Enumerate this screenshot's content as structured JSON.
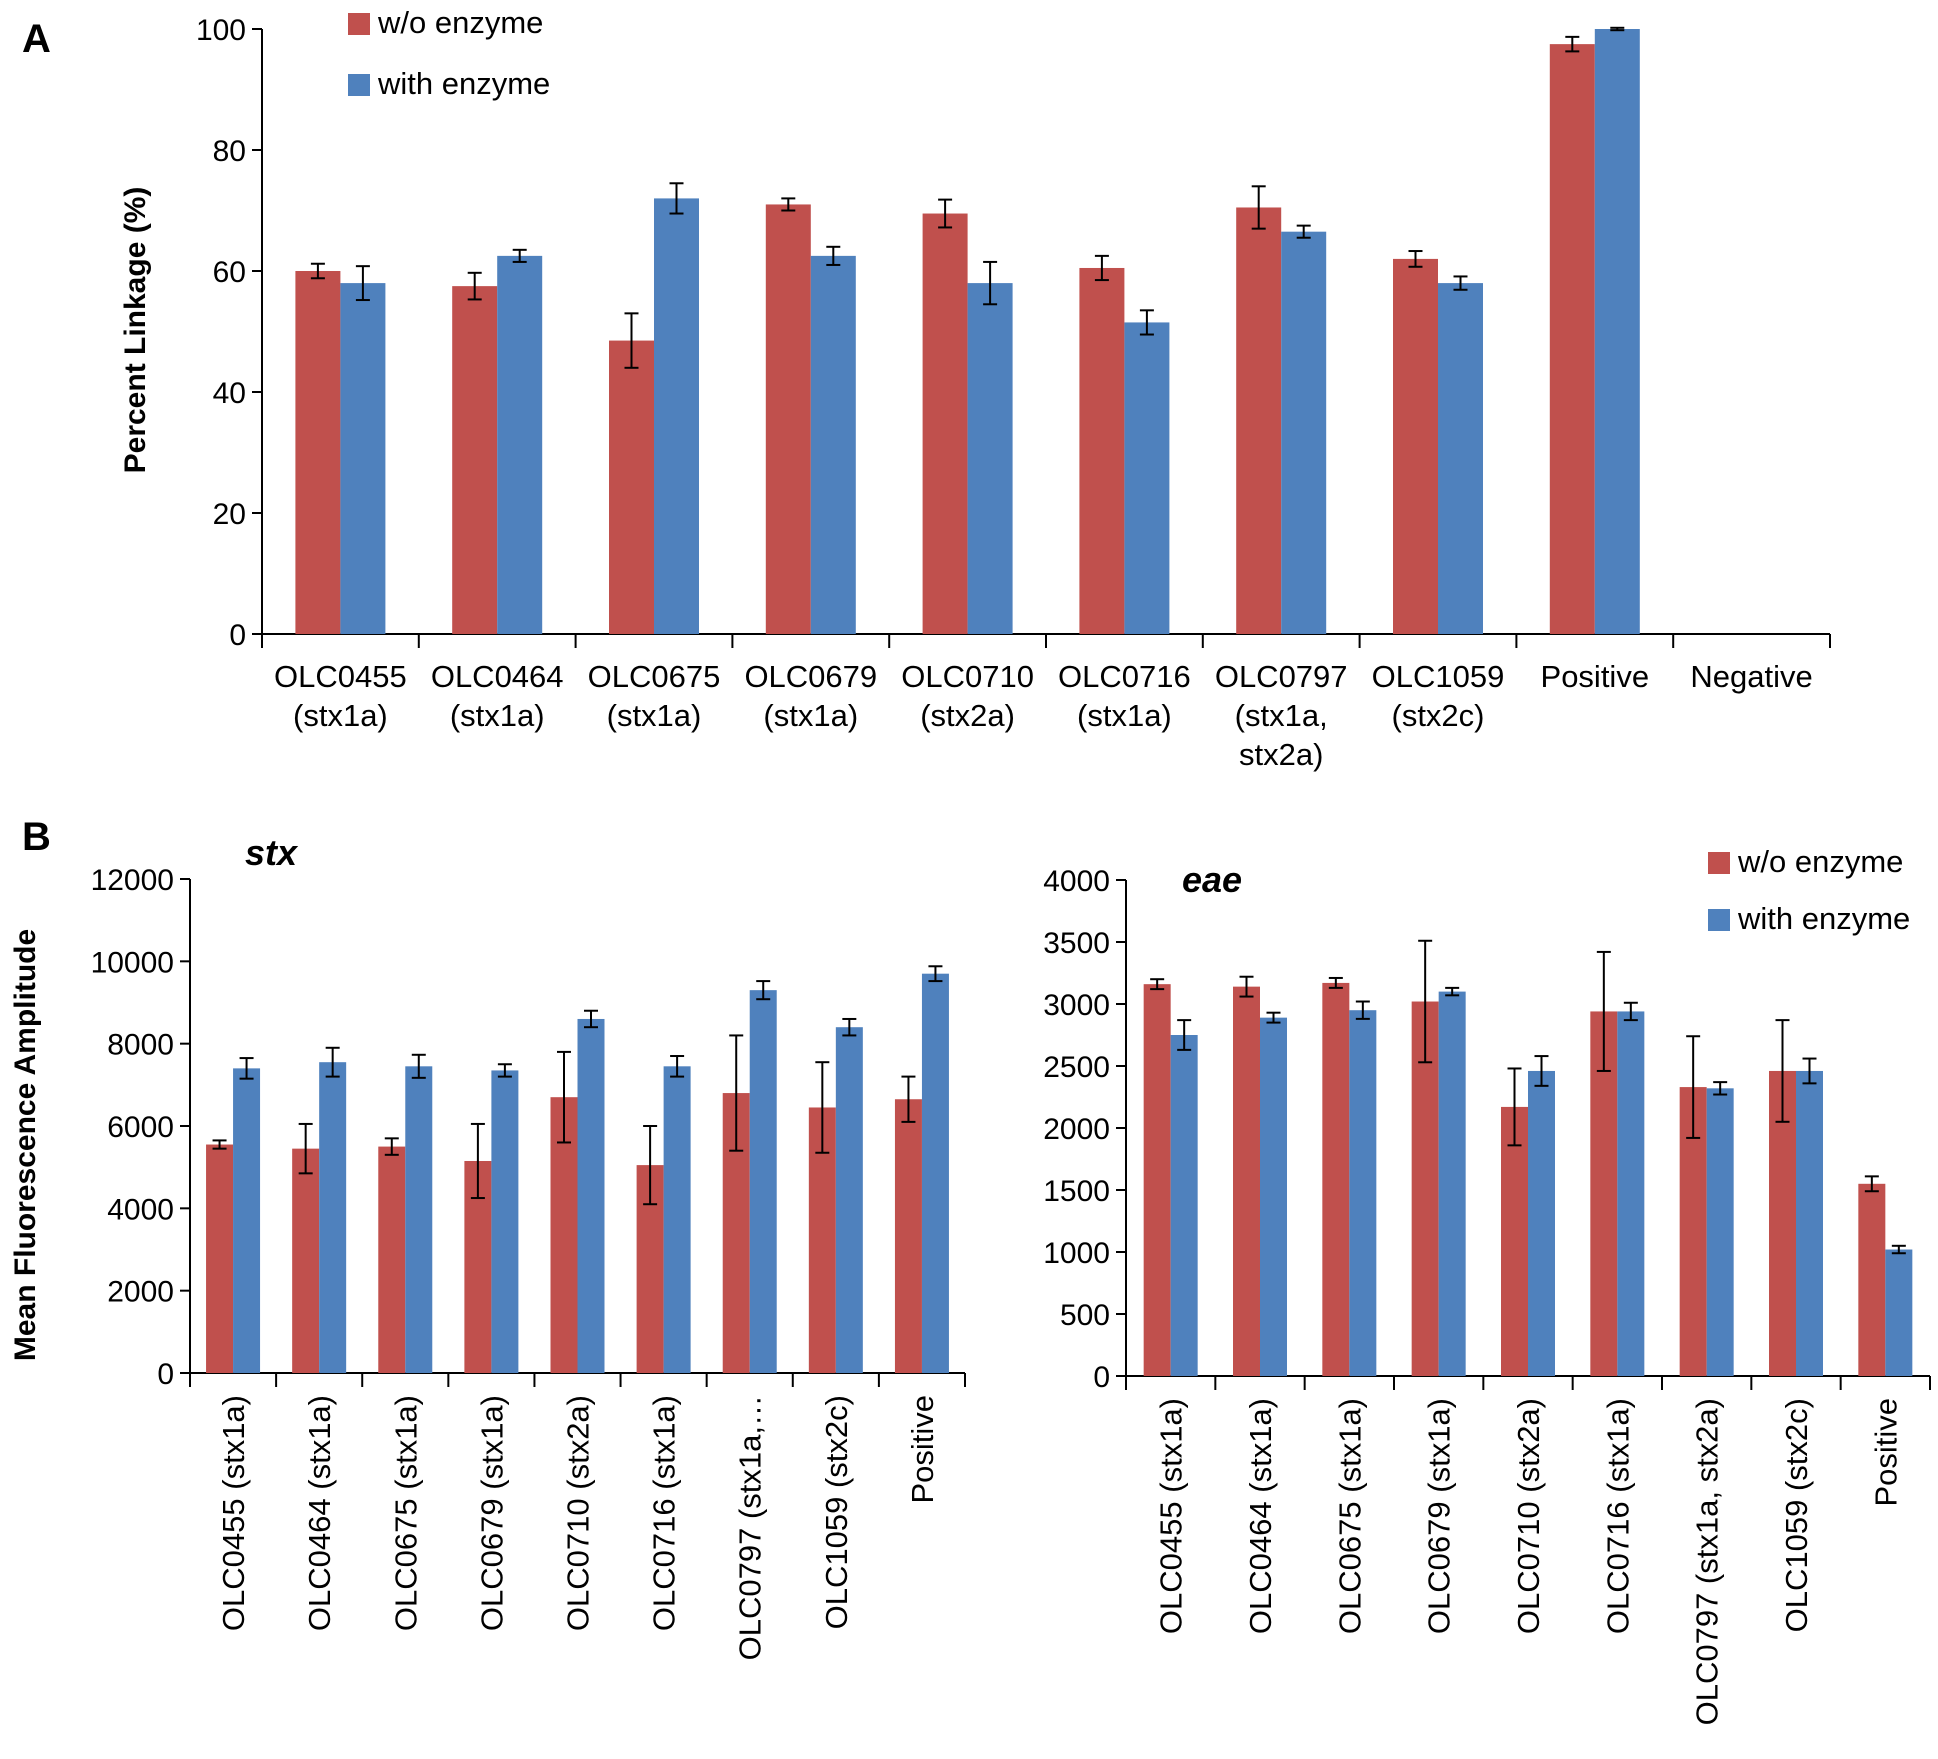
{
  "panels": {
    "a": "A",
    "b": "B"
  },
  "colors": {
    "without": "#C0504D",
    "with": "#4F81BD"
  },
  "chart_data": [
    {
      "id": "A",
      "type": "bar",
      "title": "",
      "xlabel": "",
      "ylabel": "Percent Linkage (%)",
      "ylim": [
        0,
        100
      ],
      "yticks": [
        0,
        20,
        40,
        60,
        80,
        100
      ],
      "categories": [
        [
          "OLC0455",
          "(stx1a)"
        ],
        [
          "OLC0464",
          "(stx1a)"
        ],
        [
          "OLC0675",
          "(stx1a)"
        ],
        [
          "OLC0679",
          "(stx1a)"
        ],
        [
          "OLC0710",
          "(stx2a)"
        ],
        [
          "OLC0716",
          "(stx1a)"
        ],
        [
          "OLC0797",
          "(stx1a,",
          "stx2a)"
        ],
        [
          "OLC1059",
          "(stx2c)"
        ],
        [
          "Positive"
        ],
        [
          "Negative"
        ]
      ],
      "legend": {
        "position": "top-left",
        "entries": [
          "w/o enzyme",
          "with enzyme"
        ]
      },
      "series": [
        {
          "name": "w/o enzyme",
          "values": [
            60,
            57.5,
            48.5,
            71,
            69.5,
            60.5,
            70.5,
            62,
            97.5,
            0
          ],
          "errors": [
            1.2,
            2.2,
            4.5,
            1,
            2.3,
            2,
            3.5,
            1.3,
            1.2,
            0
          ]
        },
        {
          "name": "with enzyme",
          "values": [
            58,
            62.5,
            72,
            62.5,
            58,
            51.5,
            66.5,
            58,
            100,
            0
          ],
          "errors": [
            2.8,
            1,
            2.5,
            1.5,
            3.5,
            2,
            1,
            1.1,
            0.2,
            0
          ]
        }
      ]
    },
    {
      "id": "B-stx",
      "type": "bar",
      "title": "stx",
      "xlabel": "",
      "ylabel": "Mean Fluorescence Amplitude",
      "ylim": [
        0,
        12000
      ],
      "yticks": [
        0,
        2000,
        4000,
        6000,
        8000,
        10000,
        12000
      ],
      "categories": [
        "OLC0455 (stx1a)",
        "OLC0464 (stx1a)",
        "OLC0675 (stx1a)",
        "OLC0679 (stx1a)",
        "OLC0710 (stx2a)",
        "OLC0716 (stx1a)",
        "OLC0797 (stx1a,…",
        "OLC1059 (stx2c)",
        "Positive"
      ],
      "series": [
        {
          "name": "w/o enzyme",
          "values": [
            5550,
            5450,
            5500,
            5150,
            6700,
            5050,
            6800,
            6450,
            6650
          ],
          "errors": [
            100,
            600,
            200,
            900,
            1100,
            950,
            1400,
            1100,
            550
          ]
        },
        {
          "name": "with enzyme",
          "values": [
            7400,
            7550,
            7450,
            7350,
            8600,
            7450,
            9300,
            8400,
            9700
          ],
          "errors": [
            250,
            350,
            280,
            150,
            200,
            250,
            220,
            200,
            180
          ]
        }
      ]
    },
    {
      "id": "B-eae",
      "type": "bar",
      "title": "eae",
      "xlabel": "",
      "ylabel": "",
      "ylim": [
        0,
        4000
      ],
      "yticks": [
        0,
        500,
        1000,
        1500,
        2000,
        2500,
        3000,
        3500,
        4000
      ],
      "categories": [
        "OLC0455 (stx1a)",
        "OLC0464 (stx1a)",
        "OLC0675 (stx1a)",
        "OLC0679 (stx1a)",
        "OLC0710 (stx2a)",
        "OLC0716 (stx1a)",
        "OLC0797 (stx1a, stx2a)",
        "OLC1059 (stx2c)",
        "Positive"
      ],
      "legend": {
        "position": "top-right",
        "entries": [
          "w/o enzyme",
          "with enzyme"
        ]
      },
      "series": [
        {
          "name": "w/o enzyme",
          "values": [
            3160,
            3140,
            3170,
            3020,
            2170,
            2940,
            2330,
            2460,
            1550
          ],
          "errors": [
            40,
            80,
            40,
            490,
            310,
            480,
            410,
            410,
            60
          ]
        },
        {
          "name": "with enzyme",
          "values": [
            2750,
            2890,
            2950,
            3100,
            2460,
            2940,
            2320,
            2460,
            1020
          ],
          "errors": [
            120,
            40,
            70,
            30,
            120,
            70,
            50,
            100,
            30
          ]
        }
      ]
    }
  ]
}
